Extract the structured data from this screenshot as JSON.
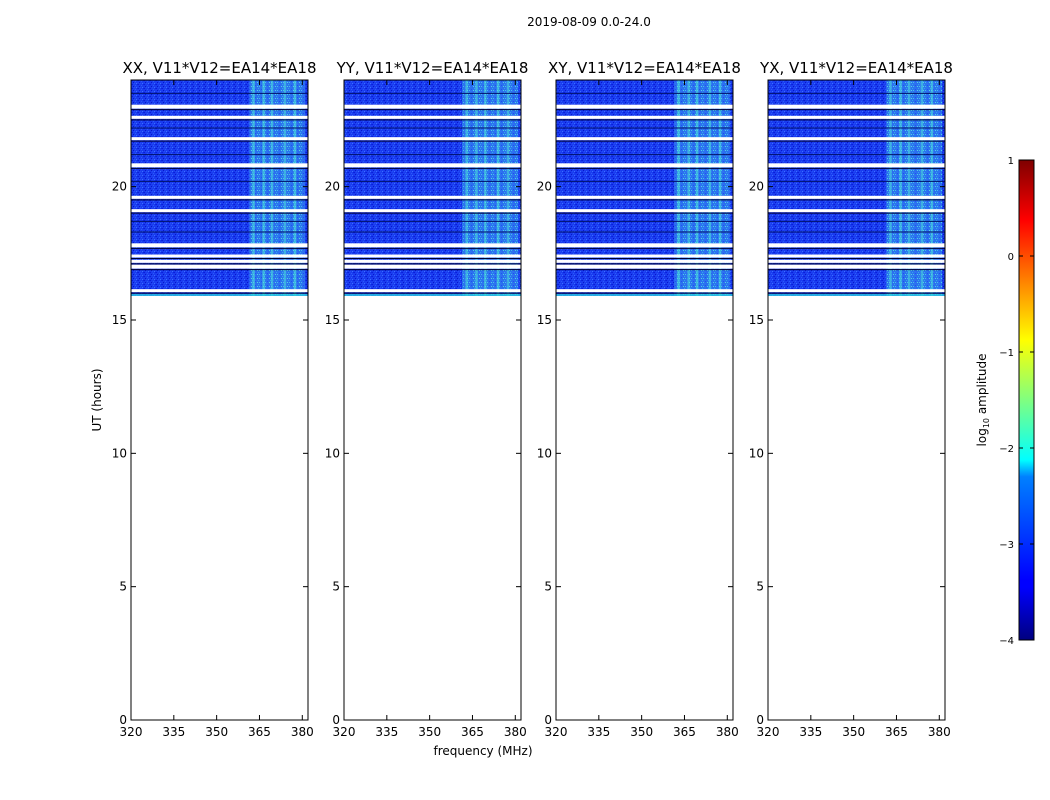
{
  "figure": {
    "suptitle": "2019-08-09 0.0-24.0",
    "xlabel": "frequency (MHz)",
    "ylabel": "UT (hours)",
    "colorbar_label_prefix": "log",
    "colorbar_label_sub": "10",
    "colorbar_label_suffix": " amplitude"
  },
  "chart_data": [
    {
      "type": "heatmap",
      "title": "XX, V11*V12=EA14*EA18",
      "xlim": [
        320,
        382
      ],
      "ylim": [
        0,
        24
      ],
      "xticks": [
        320,
        335,
        350,
        365,
        380
      ],
      "yticks": [
        0,
        5,
        10,
        15,
        20
      ],
      "data_time_range": [
        15.9,
        24.0
      ],
      "rfi_band_MHz": [
        360,
        381
      ],
      "value_typical": -3.3,
      "value_rfi": -2.3,
      "gap_rows_hours": [
        16.1,
        17.0,
        17.2,
        17.4,
        17.8,
        19.1,
        19.6,
        20.8,
        21.8,
        22.6,
        23.0
      ]
    },
    {
      "type": "heatmap",
      "title": "YY, V11*V12=EA14*EA18",
      "xlim": [
        320,
        382
      ],
      "ylim": [
        0,
        24
      ],
      "xticks": [
        320,
        335,
        350,
        365,
        380
      ],
      "yticks": [
        0,
        5,
        10,
        15,
        20
      ],
      "data_time_range": [
        15.9,
        24.0
      ],
      "rfi_band_MHz": [
        360,
        381
      ],
      "value_typical": -3.3,
      "value_rfi": -2.3,
      "gap_rows_hours": [
        16.1,
        17.0,
        17.2,
        17.4,
        17.8,
        19.1,
        19.6,
        20.8,
        21.8,
        22.6,
        23.0
      ]
    },
    {
      "type": "heatmap",
      "title": "XY, V11*V12=EA14*EA18",
      "xlim": [
        320,
        382
      ],
      "ylim": [
        0,
        24
      ],
      "xticks": [
        320,
        335,
        350,
        365,
        380
      ],
      "yticks": [
        0,
        5,
        10,
        15,
        20
      ],
      "data_time_range": [
        15.9,
        24.0
      ],
      "rfi_band_MHz": [
        360,
        381
      ],
      "value_typical": -3.3,
      "value_rfi": -2.3,
      "gap_rows_hours": [
        16.1,
        17.0,
        17.2,
        17.4,
        17.8,
        19.1,
        19.6,
        20.8,
        21.8,
        22.6,
        23.0
      ]
    },
    {
      "type": "heatmap",
      "title": "YX, V11*V12=EA14*EA18",
      "xlim": [
        320,
        382
      ],
      "ylim": [
        0,
        24
      ],
      "xticks": [
        320,
        335,
        350,
        365,
        380
      ],
      "yticks": [
        0,
        5,
        10,
        15,
        20
      ],
      "data_time_range": [
        15.9,
        24.0
      ],
      "rfi_band_MHz": [
        360,
        381
      ],
      "value_typical": -3.3,
      "value_rfi": -2.3,
      "gap_rows_hours": [
        16.1,
        17.0,
        17.2,
        17.4,
        17.8,
        19.1,
        19.6,
        20.8,
        21.8,
        22.6,
        23.0
      ]
    }
  ],
  "colorbar": {
    "colormap": "jet",
    "range": [
      -4,
      1
    ],
    "ticks": [
      -4,
      -3,
      -2,
      -1,
      0,
      1
    ],
    "tick_labels": [
      "−4",
      "−3",
      "−2",
      "−1",
      "0",
      "1"
    ]
  }
}
